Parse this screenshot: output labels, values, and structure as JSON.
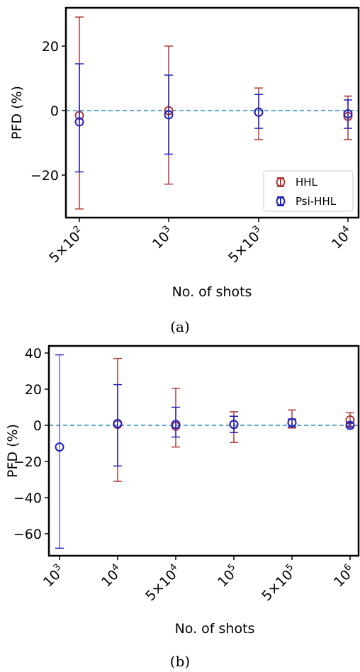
{
  "chart_data": [
    {
      "type": "errorbar",
      "caption": "(a)",
      "xlabel": "No. of shots",
      "ylabel": "PFD (%)",
      "ylim": [
        -33,
        33
      ],
      "yticks": [
        20,
        0,
        -20
      ],
      "ytick_labels": [
        "20",
        "0",
        "−20"
      ],
      "categories": [
        "5×10^2",
        "10^3",
        "5×10^3",
        "10^4"
      ],
      "x": [
        500,
        1000,
        5000,
        10000
      ],
      "reference_line": 0,
      "legend": {
        "position": "bottom-right",
        "entries": [
          "HHL",
          "Psi-HHL"
        ]
      },
      "series": [
        {
          "name": "HHL",
          "color": "#b03a3a",
          "values": [
            -1.5,
            0.0,
            -0.5,
            -1.8
          ],
          "err_low": [
            -30.5,
            -22.8,
            -9.0,
            -9.0
          ],
          "err_high": [
            29.0,
            20.0,
            7.0,
            4.5
          ]
        },
        {
          "name": "Psi-HHL",
          "color": "#2222bb",
          "values": [
            -3.5,
            -1.3,
            -0.5,
            -1.0
          ],
          "err_low": [
            -19.0,
            -13.5,
            -5.5,
            -5.5
          ],
          "err_high": [
            14.5,
            11.0,
            5.0,
            3.3
          ]
        }
      ]
    },
    {
      "type": "errorbar",
      "caption": "(b)",
      "xlabel": "No. of shots",
      "ylabel": "PFD (%)",
      "ylim": [
        -72,
        44
      ],
      "yticks": [
        40,
        20,
        0,
        -20,
        -40,
        -60
      ],
      "ytick_labels": [
        "40",
        "20",
        "0",
        "−20",
        "−40",
        "−60"
      ],
      "categories": [
        "10^3",
        "10^4",
        "5×10^4",
        "10^5",
        "5×10^5",
        "10^6"
      ],
      "x": [
        1000,
        10000,
        50000,
        100000,
        500000,
        1000000
      ],
      "reference_line": 0,
      "series": [
        {
          "name": "HHL",
          "color": "#b03a3a",
          "values": [
            null,
            0.5,
            -0.5,
            0.5,
            1.5,
            3.0
          ],
          "err_low": [
            null,
            -31.0,
            -12.0,
            -9.5,
            -1.5,
            -0.5
          ],
          "err_high": [
            null,
            37.0,
            20.5,
            7.5,
            8.5,
            7.0
          ]
        },
        {
          "name": "Psi-HHL",
          "color": "#2222bb",
          "values": [
            -12.0,
            1.0,
            0.5,
            0.5,
            1.5,
            0.0
          ],
          "err_low": [
            -68.0,
            -22.5,
            -6.5,
            -4.0,
            -0.8,
            -1.2
          ],
          "err_high": [
            39.0,
            22.5,
            10.0,
            5.0,
            3.5,
            1.3
          ]
        }
      ]
    }
  ]
}
